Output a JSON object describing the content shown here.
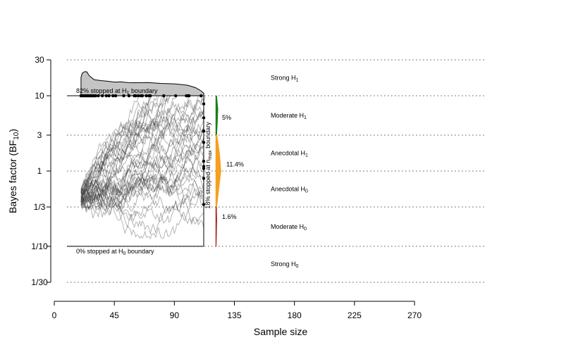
{
  "chart_data": {
    "type": "line",
    "xlabel": "Sample size",
    "ylabel_main": "Bayes factor (BF",
    "ylabel_sub": "10",
    "ylabel_end": ")",
    "x_ticks": [
      0,
      45,
      90,
      135,
      180,
      225,
      270
    ],
    "xlim": [
      0,
      270
    ],
    "y_scale": "log",
    "y_ticks": [
      {
        "value": 0.0333,
        "label": "1/30"
      },
      {
        "value": 0.1,
        "label": "1/10"
      },
      {
        "value": 0.3333,
        "label": "1/3"
      },
      {
        "value": 1,
        "label": "1"
      },
      {
        "value": 3,
        "label": "3"
      },
      {
        "value": 10,
        "label": "10"
      },
      {
        "value": 30,
        "label": "30"
      }
    ],
    "ylim": [
      0.0333,
      30
    ],
    "grid_values": [
      30,
      10,
      3,
      1,
      0.3333,
      0.1,
      0.0333
    ],
    "upper_boundary": 10,
    "lower_boundary": 0.1,
    "n_min": 20,
    "n_max": 112,
    "evidence_categories": [
      {
        "text": "Strong H",
        "sub": "1",
        "bf": 17.3
      },
      {
        "text": "Moderate H",
        "sub": "1",
        "bf": 5.48
      },
      {
        "text": "Anecdotal H",
        "sub": "1",
        "bf": 1.73
      },
      {
        "text": "Anecdotal H",
        "sub": "0",
        "bf": 0.577
      },
      {
        "text": "Moderate H",
        "sub": "0",
        "bf": 0.183
      },
      {
        "text": "Strong H",
        "sub": "0",
        "bf": 0.058
      }
    ],
    "annotations": {
      "upper": {
        "pre": "82% stopped at H",
        "sub": "1",
        "post": " boundary"
      },
      "lower": {
        "pre": "0% stopped at H",
        "sub": "0",
        "post": " boundary"
      },
      "nmax": {
        "pre": "18% stopped at n",
        "sub": "max",
        "post": " boundary"
      }
    },
    "nmax_distribution": [
      {
        "label": "5%",
        "range": [
          3,
          10
        ],
        "color": "#1e7b1e"
      },
      {
        "label": "11.4%",
        "range": [
          0.3333,
          3
        ],
        "color": "#f5a01e"
      },
      {
        "label": "1.6%",
        "range": [
          0.1,
          0.3333
        ],
        "color": "#a01e1e"
      }
    ],
    "stopped_at_upper_n": [
      20,
      21,
      22,
      23,
      24,
      25,
      26,
      27,
      28,
      29,
      30,
      31,
      33,
      36,
      39,
      41,
      44,
      46,
      52,
      56,
      60,
      61,
      63,
      65,
      66,
      69,
      71,
      72,
      82,
      91,
      99,
      100,
      101,
      110
    ],
    "stopped_at_nmax_bf": [
      7.8,
      5.1,
      3.4,
      2.4,
      1.35,
      1.15,
      1.08,
      0.8,
      0.36
    ],
    "upper_density": [
      [
        20,
        10
      ],
      [
        20,
        17.5
      ],
      [
        21,
        20
      ],
      [
        23,
        21
      ],
      [
        24.5,
        20.7
      ],
      [
        26,
        18.6
      ],
      [
        30,
        16.3
      ],
      [
        35,
        15.9
      ],
      [
        40,
        15.6
      ],
      [
        45,
        15.2
      ],
      [
        50,
        15.3
      ],
      [
        55,
        15.0
      ],
      [
        60,
        14.9
      ],
      [
        70,
        15.0
      ],
      [
        80,
        14.6
      ],
      [
        90,
        14.4
      ],
      [
        100,
        13.8
      ],
      [
        106,
        12.8
      ],
      [
        110,
        11.6
      ],
      [
        112,
        10.8
      ],
      [
        112,
        10
      ]
    ]
  }
}
